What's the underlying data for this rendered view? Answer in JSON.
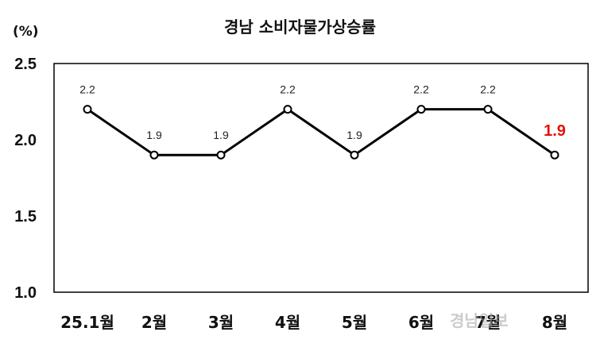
{
  "chart_data": {
    "type": "line",
    "title": "경남 소비자물가상승률",
    "ylabel": "(%)",
    "xlabel": "",
    "categories": [
      "25.1월",
      "2월",
      "3월",
      "4월",
      "5월",
      "6월",
      "7월",
      "8월"
    ],
    "series": [
      {
        "values": [
          2.2,
          1.9,
          1.9,
          2.2,
          1.9,
          2.2,
          2.2,
          1.9
        ]
      }
    ],
    "data_labels": [
      "2.2",
      "1.9",
      "1.9",
      "2.2",
      "1.9",
      "2.2",
      "2.2",
      "1.9"
    ],
    "highlight_index": 7,
    "highlight_color": "#e3120b",
    "line_color": "#000000",
    "ylim": [
      1.0,
      2.5
    ],
    "yticks": [
      "1.0",
      "1.5",
      "2.0",
      "2.5"
    ],
    "grid": false,
    "legend": "none"
  },
  "watermark": "경남일보"
}
